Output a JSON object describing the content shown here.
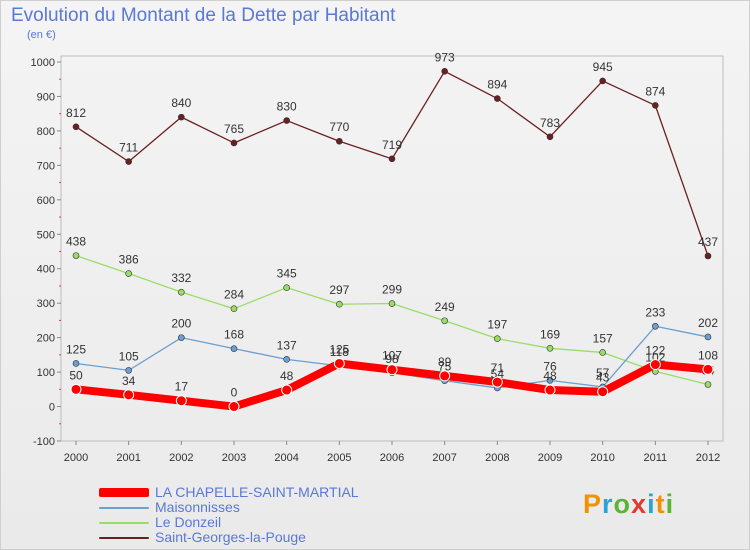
{
  "header": {
    "title": "Evolution du Montant de la Dette par Habitant",
    "subtitle": "(en €)"
  },
  "chart_data": {
    "type": "line",
    "title": "Evolution du Montant de la Dette par Habitant",
    "subtitle": "(en €)",
    "xlabel": "",
    "ylabel": "",
    "ylim": [
      -100,
      1000
    ],
    "yticks": [
      -100,
      0,
      100,
      200,
      300,
      400,
      500,
      600,
      700,
      800,
      900,
      1000
    ],
    "x": [
      "2000",
      "2001",
      "2002",
      "2003",
      "2004",
      "2005",
      "2006",
      "2007",
      "2008",
      "2009",
      "2010",
      "2011",
      "2012"
    ],
    "grid": false,
    "legend_position": "bottom-left",
    "series": [
      {
        "name": "Saint-Georges-la-Pouge",
        "color": "#6b1f1f",
        "values": [
          812,
          711,
          840,
          765,
          830,
          770,
          719,
          973,
          894,
          783,
          945,
          874,
          437
        ]
      },
      {
        "name": "Le Donzeil",
        "color": "#99dd66",
        "values": [
          438,
          386,
          332,
          284,
          345,
          297,
          299,
          249,
          197,
          169,
          157,
          102,
          64
        ]
      },
      {
        "name": "Maisonnisses",
        "color": "#6a9fd0",
        "values": [
          125,
          105,
          200,
          168,
          137,
          118,
          98,
          75,
          54,
          76,
          57,
          233,
          202
        ]
      },
      {
        "name": "LA CHAPELLE-SAINT-MARTIAL",
        "color": "#ff0000",
        "values": [
          50,
          34,
          17,
          0,
          48,
          125,
          107,
          89,
          71,
          48,
          43,
          122,
          108
        ]
      }
    ]
  },
  "legend": {
    "items": [
      {
        "label": "LA CHAPELLE-SAINT-MARTIAL",
        "color": "#ff0000"
      },
      {
        "label": "Maisonnisses",
        "color": "#6a9fd0"
      },
      {
        "label": "Le Donzeil",
        "color": "#99dd66"
      },
      {
        "label": "Saint-Georges-la-Pouge",
        "color": "#6b1f1f"
      }
    ]
  },
  "logo": {
    "p": "P",
    "r": "r",
    "o": "o",
    "x": "x",
    "i": "i",
    "t": "t",
    "i2": "i"
  }
}
